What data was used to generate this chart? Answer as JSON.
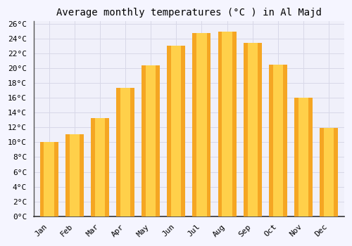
{
  "months": [
    "Jan",
    "Feb",
    "Mar",
    "Apr",
    "May",
    "Jun",
    "Jul",
    "Aug",
    "Sep",
    "Oct",
    "Nov",
    "Dec"
  ],
  "values": [
    10.0,
    11.1,
    13.3,
    17.3,
    20.4,
    23.0,
    24.7,
    24.9,
    23.4,
    20.5,
    16.0,
    11.9
  ],
  "bar_color_left": "#F5A623",
  "bar_color_center": "#FFD04A",
  "bar_color_right": "#F5A623",
  "title": "Average monthly temperatures (°C ) in Al Majd",
  "ylim": [
    0,
    26
  ],
  "ytick_step": 2,
  "background_color": "#f5f5ff",
  "plot_bg_color": "#f0f0fa",
  "grid_color": "#d8d8e8",
  "title_fontsize": 10,
  "tick_fontsize": 8,
  "font_family": "monospace"
}
